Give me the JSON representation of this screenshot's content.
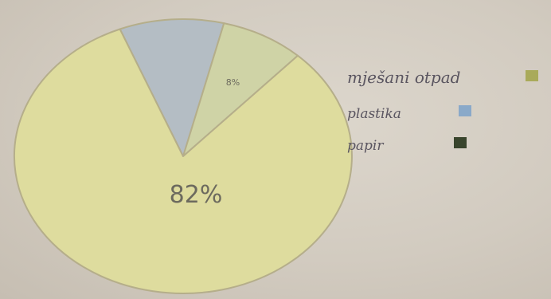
{
  "chart_data": {
    "type": "pie",
    "title": "",
    "slices": [
      {
        "label": "mješani otpad",
        "value": 82,
        "display": "82%",
        "color": "#dedc9e"
      },
      {
        "label": "plastika",
        "value": 10,
        "display": "",
        "color": "#b4bdc4"
      },
      {
        "label": "papir",
        "value": 8,
        "display": "8%",
        "color": "#cfd3a6"
      }
    ],
    "legend": {
      "placement": "right",
      "swatches": [
        "#a9aa5a",
        "#8aa9c9",
        "#39452d"
      ]
    },
    "outline_color": "#b5ae8a"
  }
}
